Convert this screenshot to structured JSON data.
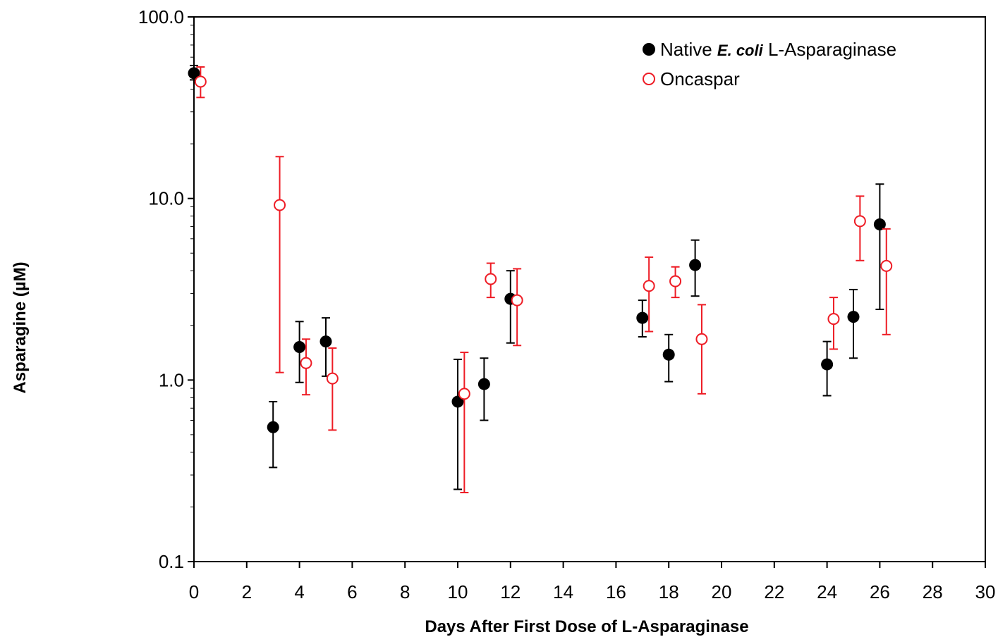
{
  "chart_data": {
    "type": "scatter",
    "title": "",
    "xlabel": "Days After First Dose of L-Asparaginase",
    "ylabel": "Asparagine (µM)",
    "xlim": [
      0,
      30
    ],
    "ylim": [
      0.1,
      100.0
    ],
    "yscale": "log",
    "grid": false,
    "legend_position": "top-right",
    "x_ticks": [
      0,
      2,
      4,
      6,
      8,
      10,
      12,
      14,
      16,
      18,
      20,
      22,
      24,
      26,
      28,
      30
    ],
    "y_ticks": [
      {
        "value": 100.0,
        "label": "100.0"
      },
      {
        "value": 10.0,
        "label": "10.0"
      },
      {
        "value": 1.0,
        "label": "1.0"
      },
      {
        "value": 0.1,
        "label": "0.1"
      }
    ],
    "legend": {
      "native_prefix": "Native ",
      "native_italic": "E. coli",
      "native_suffix": " L-Asparaginase",
      "oncaspar": "Oncaspar"
    },
    "series": [
      {
        "name": "Native E. coli L-Asparaginase",
        "color": "#000000",
        "marker": "filled-circle",
        "points": [
          {
            "x": 0,
            "y": 49.0,
            "lo": 45.0,
            "hi": 54.0
          },
          {
            "x": 3,
            "y": 0.55,
            "lo": 0.33,
            "hi": 0.76
          },
          {
            "x": 4,
            "y": 1.52,
            "lo": 0.97,
            "hi": 2.1
          },
          {
            "x": 5,
            "y": 1.63,
            "lo": 1.05,
            "hi": 2.2
          },
          {
            "x": 10,
            "y": 0.76,
            "lo": 0.25,
            "hi": 1.3
          },
          {
            "x": 11,
            "y": 0.95,
            "lo": 0.6,
            "hi": 1.32
          },
          {
            "x": 12,
            "y": 2.8,
            "lo": 1.6,
            "hi": 4.0
          },
          {
            "x": 17,
            "y": 2.2,
            "lo": 1.73,
            "hi": 2.75
          },
          {
            "x": 18,
            "y": 1.38,
            "lo": 0.98,
            "hi": 1.78
          },
          {
            "x": 19,
            "y": 4.3,
            "lo": 2.9,
            "hi": 5.9
          },
          {
            "x": 24,
            "y": 1.22,
            "lo": 0.82,
            "hi": 1.63
          },
          {
            "x": 25,
            "y": 2.23,
            "lo": 1.32,
            "hi": 3.15
          },
          {
            "x": 26,
            "y": 7.2,
            "lo": 2.45,
            "hi": 12.0
          }
        ]
      },
      {
        "name": "Oncaspar",
        "color": "#ee1c25",
        "marker": "open-circle",
        "points": [
          {
            "x": 0.25,
            "y": 44.0,
            "lo": 36.0,
            "hi": 53.0
          },
          {
            "x": 3.25,
            "y": 9.2,
            "lo": 1.1,
            "hi": 17.0
          },
          {
            "x": 4.25,
            "y": 1.24,
            "lo": 0.83,
            "hi": 1.68
          },
          {
            "x": 5.25,
            "y": 1.02,
            "lo": 0.53,
            "hi": 1.5
          },
          {
            "x": 10.25,
            "y": 0.84,
            "lo": 0.24,
            "hi": 1.42
          },
          {
            "x": 11.25,
            "y": 3.6,
            "lo": 2.85,
            "hi": 4.4
          },
          {
            "x": 12.25,
            "y": 2.75,
            "lo": 1.55,
            "hi": 4.1
          },
          {
            "x": 17.25,
            "y": 3.3,
            "lo": 1.85,
            "hi": 4.75
          },
          {
            "x": 18.25,
            "y": 3.5,
            "lo": 2.85,
            "hi": 4.2
          },
          {
            "x": 19.25,
            "y": 1.68,
            "lo": 0.84,
            "hi": 2.6
          },
          {
            "x": 24.25,
            "y": 2.17,
            "lo": 1.48,
            "hi": 2.85
          },
          {
            "x": 25.25,
            "y": 7.5,
            "lo": 4.55,
            "hi": 10.3
          },
          {
            "x": 26.25,
            "y": 4.25,
            "lo": 1.78,
            "hi": 6.8
          }
        ]
      }
    ]
  }
}
